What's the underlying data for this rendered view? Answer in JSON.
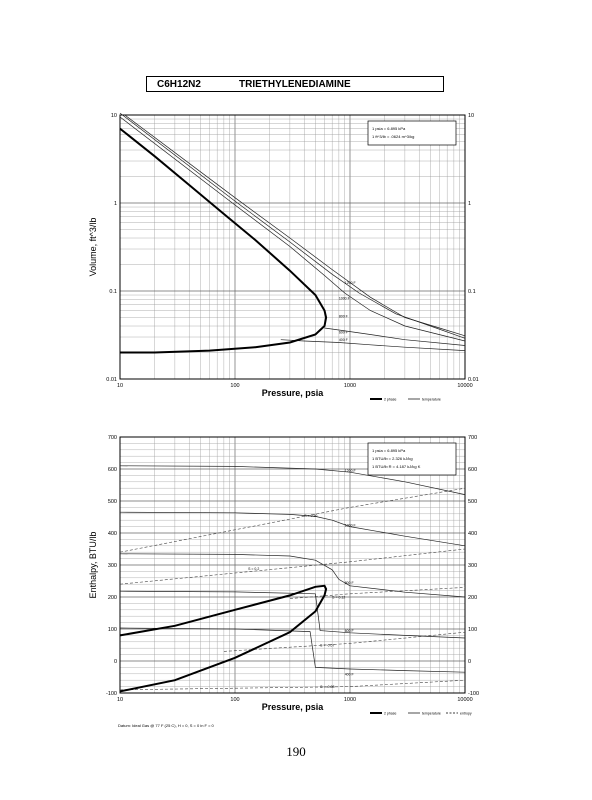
{
  "header": {
    "formula": "C6H12N2",
    "name": "TRIETHYLENEDIAMINE"
  },
  "page_number": "190",
  "chart_data": [
    {
      "type": "line",
      "id": "volume",
      "xlabel": "Pressure,  psia",
      "ylabel": "Volume, ft^3/lb",
      "xscale": "log",
      "yscale": "log",
      "xlim": [
        10,
        10000
      ],
      "ylim": [
        0.01,
        10
      ],
      "xticks": [
        "10",
        "100",
        "1000",
        "10000"
      ],
      "yticks": [
        "0.01",
        "0.1",
        "1",
        "10"
      ],
      "grid": true,
      "notes": [
        "1 psia  =  6.895 kPa",
        "1 ft^3/lb  =  .0624 m^3/kg"
      ],
      "legend": {
        "two_phase": "2 phase",
        "temperature": "temperature"
      },
      "two_phase": {
        "x": [
          10,
          20,
          40,
          80,
          150,
          300,
          500,
          600,
          620,
          600,
          500,
          300,
          150,
          60,
          20,
          10
        ],
        "y": [
          7,
          3.4,
          1.6,
          0.75,
          0.38,
          0.17,
          0.09,
          0.06,
          0.05,
          0.04,
          0.032,
          0.026,
          0.023,
          0.021,
          0.02,
          0.02
        ]
      },
      "series": [
        {
          "name": "400 F",
          "x": [
            250,
            400,
            800,
            1500,
            3000,
            10000
          ],
          "y": [
            0.028,
            0.027,
            0.026,
            0.0245,
            0.023,
            0.021
          ]
        },
        {
          "name": "600 F",
          "x": [
            600,
            800,
            1500,
            3000,
            10000
          ],
          "y": [
            0.038,
            0.036,
            0.032,
            0.028,
            0.024
          ]
        },
        {
          "name": "800 F",
          "x": [
            10,
            100,
            300,
            600,
            900,
            1500,
            3000,
            10000
          ],
          "y": [
            9.5,
            0.95,
            0.32,
            0.15,
            0.095,
            0.06,
            0.04,
            0.027
          ]
        },
        {
          "name": "1000 F",
          "x": [
            10,
            100,
            300,
            700,
            1200,
            2500,
            5000,
            10000
          ],
          "y": [
            10.5,
            1.05,
            0.36,
            0.155,
            0.095,
            0.055,
            0.04,
            0.029
          ]
        },
        {
          "name": "1200 F",
          "x": [
            11,
            100,
            300,
            700,
            1500,
            3000,
            6000,
            10000
          ],
          "y": [
            10,
            1.15,
            0.4,
            0.175,
            0.085,
            0.05,
            0.038,
            0.031
          ]
        }
      ],
      "isotherm_labels": [
        {
          "text": "1200 F",
          "x": 900,
          "y": 0.12
        },
        {
          "text": "1000 F",
          "x": 800,
          "y": 0.08
        },
        {
          "text": "800 F",
          "x": 800,
          "y": 0.05
        },
        {
          "text": "600 F",
          "x": 800,
          "y": 0.033
        },
        {
          "text": "400 F",
          "x": 800,
          "y": 0.027
        }
      ]
    },
    {
      "type": "line",
      "id": "enthalpy",
      "xlabel": "Pressure,  psia",
      "ylabel": "Enthalpy, BTU/lb",
      "xscale": "log",
      "yscale": "linear",
      "xlim": [
        10,
        10000
      ],
      "ylim": [
        -100,
        700
      ],
      "xticks": [
        "10",
        "100",
        "1000",
        "10000"
      ],
      "yticks": [
        "-100",
        "0",
        "100",
        "200",
        "300",
        "400",
        "500",
        "600",
        "700"
      ],
      "grid": true,
      "notes": [
        "1 psia  =  6.895 kPa",
        "1 BTU/lb  =  2.326 kJ/kg",
        "1 BTU/lb R  =  4.187 kJ/kg K"
      ],
      "legend": {
        "two_phase": "2 phase",
        "temperature": "temperature",
        "entropy": "entropy"
      },
      "footnote": "Datum: Ideal Gas @ 77 F (25 C),  H = 0,  S = 0 in F = 0",
      "two_phase": {
        "x": [
          10,
          30,
          100,
          300,
          500,
          600,
          620,
          600,
          500,
          300,
          100,
          30,
          10
        ],
        "y": [
          80,
          110,
          160,
          205,
          232,
          235,
          225,
          205,
          155,
          90,
          10,
          -60,
          -95
        ]
      },
      "series": [
        {
          "name": "1200 F",
          "x": [
            10,
            100,
            500,
            1000,
            3000,
            10000
          ],
          "y": [
            610,
            608,
            600,
            590,
            560,
            520
          ]
        },
        {
          "name": "1000 F",
          "x": [
            10,
            100,
            300,
            500,
            700,
            1000,
            3000,
            10000
          ],
          "y": [
            465,
            463,
            458,
            452,
            440,
            420,
            390,
            360
          ]
        },
        {
          "name": "800 F",
          "x": [
            10,
            100,
            300,
            500,
            700,
            800,
            1000,
            3000,
            10000
          ],
          "y": [
            335,
            333,
            328,
            315,
            285,
            255,
            235,
            215,
            200
          ]
        },
        {
          "name": "600 F",
          "x": [
            10,
            100,
            500,
            550,
            1000,
            3000,
            10000
          ],
          "y": [
            218,
            216,
            210,
            95,
            88,
            80,
            72
          ]
        },
        {
          "name": "400 F",
          "x": [
            10,
            100,
            450,
            500,
            1000,
            3000,
            10000
          ],
          "y": [
            103,
            100,
            92,
            -20,
            -25,
            -30,
            -35
          ]
        }
      ],
      "entropy_lines": [
        {
          "name": "S = 0.30",
          "x": [
            10,
            1000,
            10000
          ],
          "y": [
            340,
            480,
            540
          ]
        },
        {
          "name": "S = 0.2",
          "x": [
            10,
            1000,
            10000
          ],
          "y": [
            240,
            310,
            350
          ]
        },
        {
          "name": "S = 0.12",
          "x": [
            300,
            1000,
            10000
          ],
          "y": [
            195,
            210,
            230
          ]
        },
        {
          "name": "S = -0.07",
          "x": [
            80,
            1000,
            10000
          ],
          "y": [
            30,
            55,
            90
          ]
        },
        {
          "name": "S = -0.08",
          "x": [
            10,
            1000,
            10000
          ],
          "y": [
            -90,
            -80,
            -60
          ]
        }
      ],
      "isotherm_labels": [
        {
          "text": "1200 F",
          "x": 900,
          "y": 590
        },
        {
          "text": "1000 F",
          "x": 900,
          "y": 420
        },
        {
          "text": "800 F",
          "x": 900,
          "y": 240
        },
        {
          "text": "600 F",
          "x": 900,
          "y": 90
        },
        {
          "text": "400 F",
          "x": 900,
          "y": -45
        }
      ],
      "entropy_labels": [
        {
          "text": "S = 0.30",
          "x": 400,
          "y": 450
        },
        {
          "text": "S = 0.2",
          "x": 130,
          "y": 285
        },
        {
          "text": "S = 0.12",
          "x": 700,
          "y": 195
        },
        {
          "text": "S = -0.07",
          "x": 550,
          "y": 45
        },
        {
          "text": "S = -0.08",
          "x": 550,
          "y": -85
        }
      ]
    }
  ]
}
